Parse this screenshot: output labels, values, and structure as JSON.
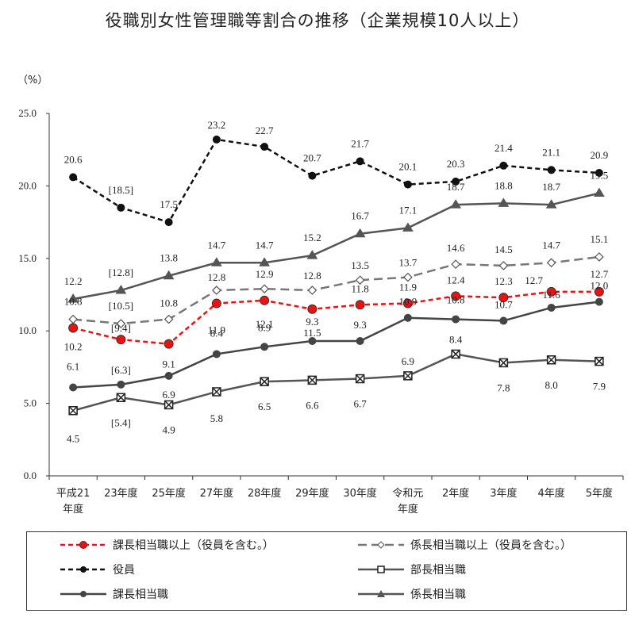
{
  "chart_data": {
    "type": "line",
    "title": "役職別女性管理職等割合の推移（企業規模10人以上）",
    "unit": "（%）",
    "categories": [
      "平成21\n年度",
      "23年度",
      "25年度",
      "27年度",
      "28年度",
      "29年度",
      "30年度",
      "令和元\n年度",
      "2年度",
      "3年度",
      "4年度",
      "5年度"
    ],
    "ylim": [
      0,
      25
    ],
    "yticks": [
      "0.0",
      "5.0",
      "10.0",
      "15.0",
      "20.0",
      "25.0"
    ],
    "grid": false,
    "legend_position": "bottom",
    "series": [
      {
        "name": "役員",
        "values": [
          20.6,
          18.5,
          17.5,
          23.2,
          22.7,
          20.7,
          21.7,
          20.1,
          20.3,
          21.4,
          21.1,
          20.9
        ],
        "labels": [
          "20.6",
          "[18.5]",
          "17.5",
          "23.2",
          "22.7",
          "20.7",
          "21.7",
          "20.1",
          "20.3",
          "21.4",
          "21.1",
          "20.9"
        ],
        "color": "#111111",
        "dash": "short",
        "marker": "dot"
      },
      {
        "name": "係長相当職",
        "values": [
          12.2,
          12.8,
          13.8,
          14.7,
          14.7,
          15.2,
          16.7,
          17.1,
          18.7,
          18.8,
          18.7,
          19.5
        ],
        "labels": [
          "12.2",
          "[12.8]",
          "13.8",
          "14.7",
          "14.7",
          "15.2",
          "16.7",
          "17.1",
          "18.7",
          "18.8",
          "18.7",
          "19.5"
        ],
        "color": "#555555",
        "dash": "solid",
        "marker": "triangle"
      },
      {
        "name": "係長相当職以上（役員を含む。）",
        "values": [
          10.8,
          10.5,
          10.8,
          12.8,
          12.9,
          12.8,
          13.5,
          13.7,
          14.6,
          14.5,
          14.7,
          15.1
        ],
        "labels": [
          "10.8",
          "[10.5]",
          "10.8",
          "12.8",
          "12.9",
          "12.8",
          "13.5",
          "13.7",
          "14.6",
          "14.5",
          "14.7",
          "15.1"
        ],
        "color": "#777777",
        "dash": "long",
        "marker": "diamond"
      },
      {
        "name": "課長相当職以上（役員を含む。）",
        "values": [
          10.2,
          9.4,
          9.1,
          11.9,
          12.1,
          11.5,
          11.8,
          11.9,
          12.4,
          12.3,
          12.7,
          12.7
        ],
        "labels": [
          "10.2",
          "[9.4]",
          "9.1",
          "11.9",
          "12.1",
          "11.5",
          "11.8",
          "11.9",
          "12.4",
          "12.3",
          "12.7",
          "12.7"
        ],
        "color": "#ee1111",
        "dash": "short",
        "marker": "reddot"
      },
      {
        "name": "課長相当職",
        "values": [
          6.1,
          6.3,
          6.9,
          8.4,
          8.9,
          9.3,
          9.3,
          10.9,
          10.8,
          10.7,
          11.6,
          12.0
        ],
        "labels": [
          "6.1",
          "[6.3]",
          "6.9",
          "8.4",
          "8.9",
          "9.3",
          "9.3",
          "10.9",
          "10.8",
          "10.7",
          "11.6",
          "12.0"
        ],
        "color": "#444444",
        "dash": "solid",
        "marker": "dot"
      },
      {
        "name": "部長相当職",
        "values": [
          4.5,
          5.4,
          4.9,
          5.8,
          6.5,
          6.6,
          6.7,
          6.9,
          8.4,
          7.8,
          8.0,
          7.9
        ],
        "labels": [
          "4.5",
          "[5.4]",
          "4.9",
          "5.8",
          "6.5",
          "6.6",
          "6.7",
          "6.9",
          "8.4",
          "7.8",
          "8.0",
          "7.9"
        ],
        "color": "#555555",
        "dash": "solid",
        "marker": "xsquare"
      }
    ],
    "legend": [
      {
        "series": 3,
        "label": "課長相当職以上（役員を含む。）"
      },
      {
        "series": 2,
        "label": "係長相当職以上（役員を含む。）"
      },
      {
        "series": 0,
        "label": "役員"
      },
      {
        "series": 5,
        "label": "部長相当職"
      },
      {
        "series": 4,
        "label": "課長相当職"
      },
      {
        "series": 1,
        "label": "係長相当職"
      }
    ]
  }
}
